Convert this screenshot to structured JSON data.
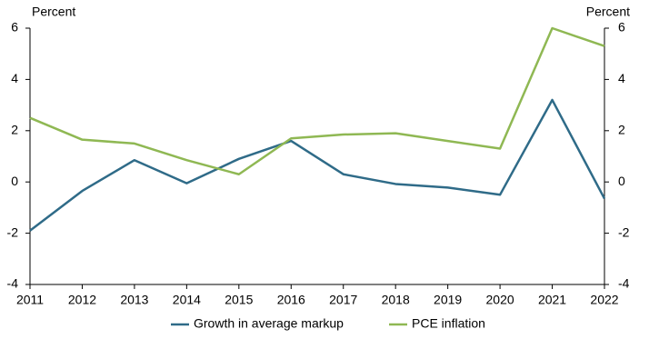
{
  "chart_data": {
    "type": "line",
    "y_label": "Percent",
    "y2_label": "Percent",
    "categories": [
      "2011",
      "2012",
      "2013",
      "2014",
      "2015",
      "2016",
      "2017",
      "2018",
      "2019",
      "2020",
      "2021",
      "2022"
    ],
    "series": [
      {
        "name": "Growth in average markup",
        "color": "#2f6b88",
        "values": [
          -1.9,
          -0.35,
          0.85,
          -0.05,
          0.9,
          1.6,
          0.3,
          -0.08,
          -0.22,
          -0.5,
          3.2,
          -0.65
        ]
      },
      {
        "name": "PCE inflation",
        "color": "#8fb853",
        "values": [
          2.5,
          1.65,
          1.5,
          0.85,
          0.3,
          1.7,
          1.85,
          1.9,
          1.6,
          1.3,
          6.0,
          5.3
        ]
      }
    ],
    "ylim": [
      -4,
      6
    ],
    "yticks": [
      -4,
      -2,
      0,
      2,
      4,
      6
    ],
    "y2lim": [
      -4,
      6
    ],
    "y2ticks": [
      -4,
      -2,
      0,
      2,
      4,
      6
    ],
    "legend": "bottom"
  }
}
